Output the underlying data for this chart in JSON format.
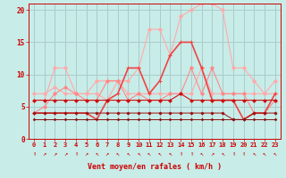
{
  "xlabel": "Vent moyen/en rafales ( km/h )",
  "xlim": [
    -0.5,
    23.5
  ],
  "ylim": [
    0,
    21
  ],
  "background_color": "#c8ece8",
  "grid_color": "#aacccc",
  "series": [
    {
      "color": "#ffaaaa",
      "linewidth": 0.8,
      "markersize": 2.0,
      "marker": "D",
      "values": [
        7,
        7,
        8,
        7,
        7,
        7,
        9,
        9,
        9,
        9,
        11,
        17,
        17,
        13,
        19,
        20,
        21,
        21,
        20,
        11,
        11,
        9,
        7,
        9
      ]
    },
    {
      "color": "#ffaaaa",
      "linewidth": 0.8,
      "markersize": 2.0,
      "marker": "D",
      "values": [
        6,
        6,
        11,
        11,
        7,
        7,
        7,
        6,
        9,
        7,
        7,
        7,
        7,
        7,
        7,
        7,
        11,
        7,
        7,
        7,
        7,
        7,
        7,
        7
      ]
    },
    {
      "color": "#ff8888",
      "linewidth": 0.8,
      "markersize": 2.0,
      "marker": "D",
      "values": [
        4,
        5,
        7,
        8,
        7,
        6,
        6,
        9,
        9,
        6,
        7,
        6,
        6,
        7,
        7,
        11,
        7,
        11,
        7,
        7,
        7,
        4,
        4,
        6
      ]
    },
    {
      "color": "#ee4444",
      "linewidth": 1.2,
      "markersize": 2.5,
      "marker": "+",
      "values": [
        4,
        4,
        4,
        4,
        4,
        4,
        3,
        6,
        7,
        11,
        11,
        7,
        9,
        13,
        15,
        15,
        11,
        6,
        6,
        6,
        3,
        4,
        4,
        7
      ]
    },
    {
      "color": "#cc1111",
      "linewidth": 0.8,
      "markersize": 1.8,
      "marker": "D",
      "values": [
        6,
        6,
        6,
        6,
        6,
        6,
        6,
        6,
        6,
        6,
        6,
        6,
        6,
        6,
        7,
        6,
        6,
        6,
        6,
        6,
        6,
        6,
        6,
        6
      ]
    },
    {
      "color": "#991111",
      "linewidth": 0.7,
      "markersize": 1.5,
      "marker": "D",
      "values": [
        4,
        4,
        4,
        4,
        4,
        4,
        4,
        4,
        4,
        4,
        4,
        4,
        4,
        4,
        4,
        4,
        4,
        4,
        4,
        3,
        3,
        4,
        4,
        4
      ]
    },
    {
      "color": "#881111",
      "linewidth": 0.7,
      "markersize": 1.2,
      "marker": "D",
      "values": [
        3,
        3,
        3,
        3,
        3,
        3,
        3,
        3,
        3,
        3,
        3,
        3,
        3,
        3,
        3,
        3,
        3,
        3,
        3,
        3,
        3,
        3,
        3,
        3
      ]
    }
  ],
  "wind_arrows": [
    "↑",
    "↗",
    "↗",
    "↗",
    "↑",
    "↗",
    "↖",
    "↗",
    "↖",
    "↖",
    "↖",
    "↖",
    "↖",
    "↖",
    "↑",
    "↑",
    "↖",
    "↗",
    "↖",
    "↑",
    "↑",
    "↖",
    "↖",
    "↖"
  ],
  "xticks": [
    0,
    1,
    2,
    3,
    4,
    5,
    6,
    7,
    8,
    9,
    10,
    11,
    12,
    13,
    14,
    15,
    16,
    17,
    18,
    19,
    20,
    21,
    22,
    23
  ],
  "yticks": [
    0,
    5,
    10,
    15,
    20
  ],
  "tick_color": "#cc0000",
  "label_color": "#cc0000"
}
